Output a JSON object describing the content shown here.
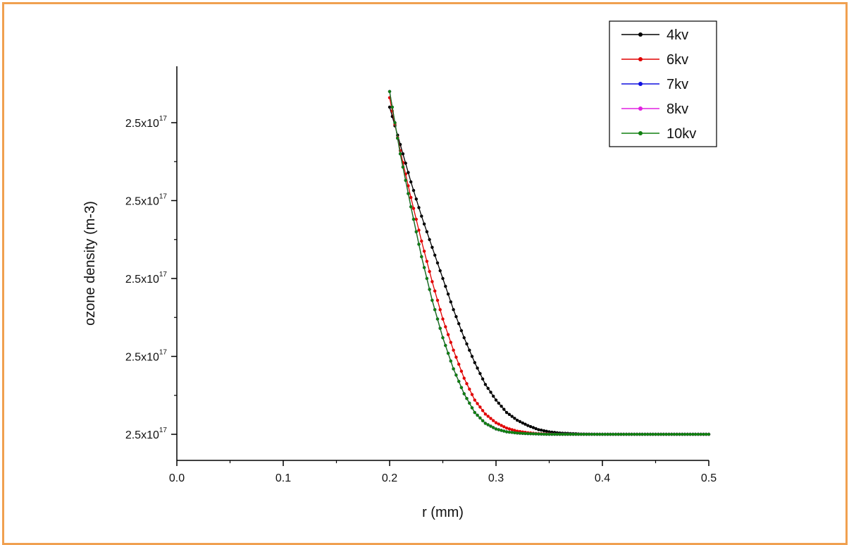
{
  "frame_color": "#f0a050",
  "chart_data": {
    "type": "line",
    "title": "",
    "xlabel": "r (mm)",
    "ylabel": "ozone density (m-3)",
    "xlim": [
      0.0,
      0.5
    ],
    "ylim": [
      0,
      1
    ],
    "x_ticks": [
      "0.0",
      "0.1",
      "0.2",
      "0.3",
      "0.4",
      "0.5"
    ],
    "x_tick_values": [
      0.0,
      0.1,
      0.2,
      0.3,
      0.4,
      0.5
    ],
    "y_ticks": [
      {
        "base": "2.5x10",
        "exp": "17",
        "value": 0.0
      },
      {
        "base": "2.5x10",
        "exp": "17",
        "value": 0.25
      },
      {
        "base": "2.5x10",
        "exp": "17",
        "value": 0.5
      },
      {
        "base": "2.5x10",
        "exp": "17",
        "value": 0.75
      },
      {
        "base": "2.5x10",
        "exp": "17",
        "value": 1.0
      }
    ],
    "grid": false,
    "legend_position": "top-right",
    "x": [
      0.2,
      0.21,
      0.22,
      0.23,
      0.24,
      0.25,
      0.26,
      0.27,
      0.28,
      0.29,
      0.3,
      0.31,
      0.32,
      0.33,
      0.34,
      0.35,
      0.36,
      0.38,
      0.4,
      0.45,
      0.5
    ],
    "series": [
      {
        "name": "4kv",
        "color": "#000000",
        "values": [
          1.05,
          0.93,
          0.81,
          0.7,
          0.6,
          0.5,
          0.4,
          0.31,
          0.23,
          0.16,
          0.11,
          0.07,
          0.045,
          0.028,
          0.015,
          0.008,
          0.004,
          0.001,
          0.0,
          0.0,
          0.0
        ]
      },
      {
        "name": "6kv",
        "color": "#e00000",
        "values": [
          1.08,
          0.91,
          0.76,
          0.62,
          0.49,
          0.37,
          0.27,
          0.18,
          0.11,
          0.065,
          0.037,
          0.02,
          0.01,
          0.005,
          0.002,
          0.001,
          0.0,
          0.0,
          0.0,
          0.0,
          0.0
        ]
      },
      {
        "name": "7kv",
        "color": "#1010e0",
        "values": [
          1.1,
          0.9,
          0.73,
          0.57,
          0.43,
          0.31,
          0.21,
          0.13,
          0.07,
          0.035,
          0.017,
          0.008,
          0.004,
          0.002,
          0.001,
          0.0,
          0.0,
          0.0,
          0.0,
          0.0,
          0.0
        ]
      },
      {
        "name": "8kv",
        "color": "#e020e0",
        "values": [
          1.1,
          0.9,
          0.73,
          0.57,
          0.43,
          0.31,
          0.21,
          0.13,
          0.07,
          0.035,
          0.017,
          0.008,
          0.004,
          0.002,
          0.001,
          0.0,
          0.0,
          0.0,
          0.0,
          0.0,
          0.0
        ]
      },
      {
        "name": "10kv",
        "color": "#108010",
        "values": [
          1.1,
          0.9,
          0.73,
          0.57,
          0.43,
          0.31,
          0.21,
          0.13,
          0.07,
          0.035,
          0.017,
          0.008,
          0.004,
          0.002,
          0.001,
          0.0,
          0.0,
          0.0,
          0.0,
          0.0,
          0.0
        ]
      }
    ]
  }
}
